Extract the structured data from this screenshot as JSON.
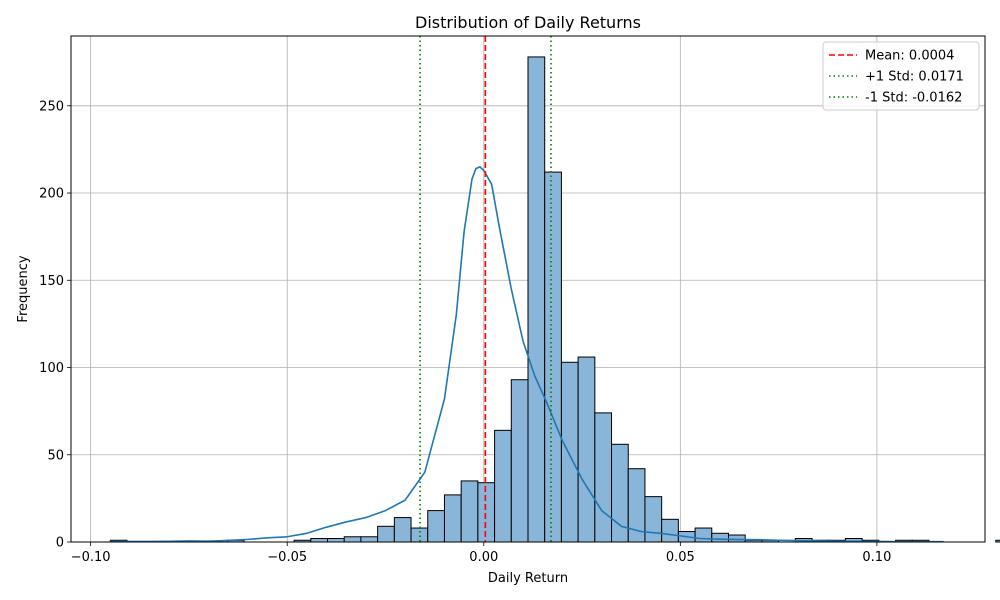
{
  "chart_data": {
    "type": "bar",
    "title": "Distribution of Daily Returns",
    "xlabel": "Daily Return",
    "ylabel": "Frequency",
    "xlim": [
      -0.105,
      0.1275
    ],
    "ylim": [
      0,
      290
    ],
    "grid": true,
    "legend_position": "top-right",
    "x_ticks": [
      {
        "value": -0.1,
        "label": "−0.10"
      },
      {
        "value": -0.05,
        "label": "−0.05"
      },
      {
        "value": 0.0,
        "label": "0.00"
      },
      {
        "value": 0.05,
        "label": "0.05"
      },
      {
        "value": 0.1,
        "label": "0.10"
      }
    ],
    "y_ticks": [
      {
        "value": 0,
        "label": "0"
      },
      {
        "value": 50,
        "label": "50"
      },
      {
        "value": 100,
        "label": "100"
      },
      {
        "value": 150,
        "label": "150"
      },
      {
        "value": 200,
        "label": "200"
      },
      {
        "value": 250,
        "label": "250"
      }
    ],
    "bin_start": -0.095,
    "bin_width": 0.00425,
    "counts": [
      1,
      0,
      0,
      0,
      0,
      0,
      0,
      1,
      0,
      0,
      0,
      1,
      2,
      2,
      3,
      3,
      9,
      14,
      8,
      18,
      27,
      35,
      34,
      64,
      93,
      278,
      212,
      103,
      106,
      74,
      56,
      42,
      26,
      13,
      6,
      8,
      5,
      4,
      1,
      1,
      0,
      2,
      1,
      1,
      2,
      1,
      0,
      1,
      1,
      0,
      0,
      0,
      0,
      1
    ],
    "kde": [
      [
        -0.095,
        0.3
      ],
      [
        -0.09,
        0.3
      ],
      [
        -0.085,
        0.3
      ],
      [
        -0.08,
        0.4
      ],
      [
        -0.075,
        0.6
      ],
      [
        -0.07,
        0.5
      ],
      [
        -0.065,
        0.9
      ],
      [
        -0.06,
        1.5
      ],
      [
        -0.055,
        2.4
      ],
      [
        -0.05,
        3.0
      ],
      [
        -0.045,
        5.0
      ],
      [
        -0.04,
        8.5
      ],
      [
        -0.035,
        11.5
      ],
      [
        -0.03,
        14.0
      ],
      [
        -0.025,
        18.0
      ],
      [
        -0.02,
        24.0
      ],
      [
        -0.015,
        40.0
      ],
      [
        -0.01,
        82.0
      ],
      [
        -0.007,
        130.0
      ],
      [
        -0.005,
        178.0
      ],
      [
        -0.003,
        208.0
      ],
      [
        -0.002,
        214.0
      ],
      [
        -0.001,
        215.0
      ],
      [
        0.0,
        213.0
      ],
      [
        0.002,
        205.0
      ],
      [
        0.004,
        180.0
      ],
      [
        0.007,
        145.0
      ],
      [
        0.01,
        115.0
      ],
      [
        0.013,
        95.0
      ],
      [
        0.016,
        80.0
      ],
      [
        0.02,
        58.0
      ],
      [
        0.025,
        36.0
      ],
      [
        0.03,
        18.0
      ],
      [
        0.035,
        9.0
      ],
      [
        0.04,
        6.0
      ],
      [
        0.045,
        5.0
      ],
      [
        0.05,
        3.5
      ],
      [
        0.055,
        2.0
      ],
      [
        0.06,
        1.6
      ],
      [
        0.065,
        1.4
      ],
      [
        0.07,
        1.3
      ],
      [
        0.075,
        1.0
      ],
      [
        0.08,
        0.8
      ],
      [
        0.085,
        0.6
      ],
      [
        0.09,
        0.5
      ],
      [
        0.095,
        0.4
      ],
      [
        0.1,
        0.3
      ],
      [
        0.105,
        0.2
      ],
      [
        0.11,
        0.2
      ],
      [
        0.117,
        0.2
      ]
    ],
    "reference_lines": [
      {
        "name": "Mean: 0.0004",
        "x": 0.0004,
        "color": "#ff0000",
        "style": "dashed"
      },
      {
        "name": "+1 Std: 0.0171",
        "x": 0.0171,
        "color": "#008000",
        "style": "dotted"
      },
      {
        "name": "-1 Std: -0.0162",
        "x": -0.0162,
        "color": "#008000",
        "style": "dotted"
      }
    ],
    "colors": {
      "bar_fill": "#89b5d8",
      "bar_edge": "#000000",
      "kde_line": "#1f77b4",
      "grid": "#b0b0b0"
    }
  }
}
